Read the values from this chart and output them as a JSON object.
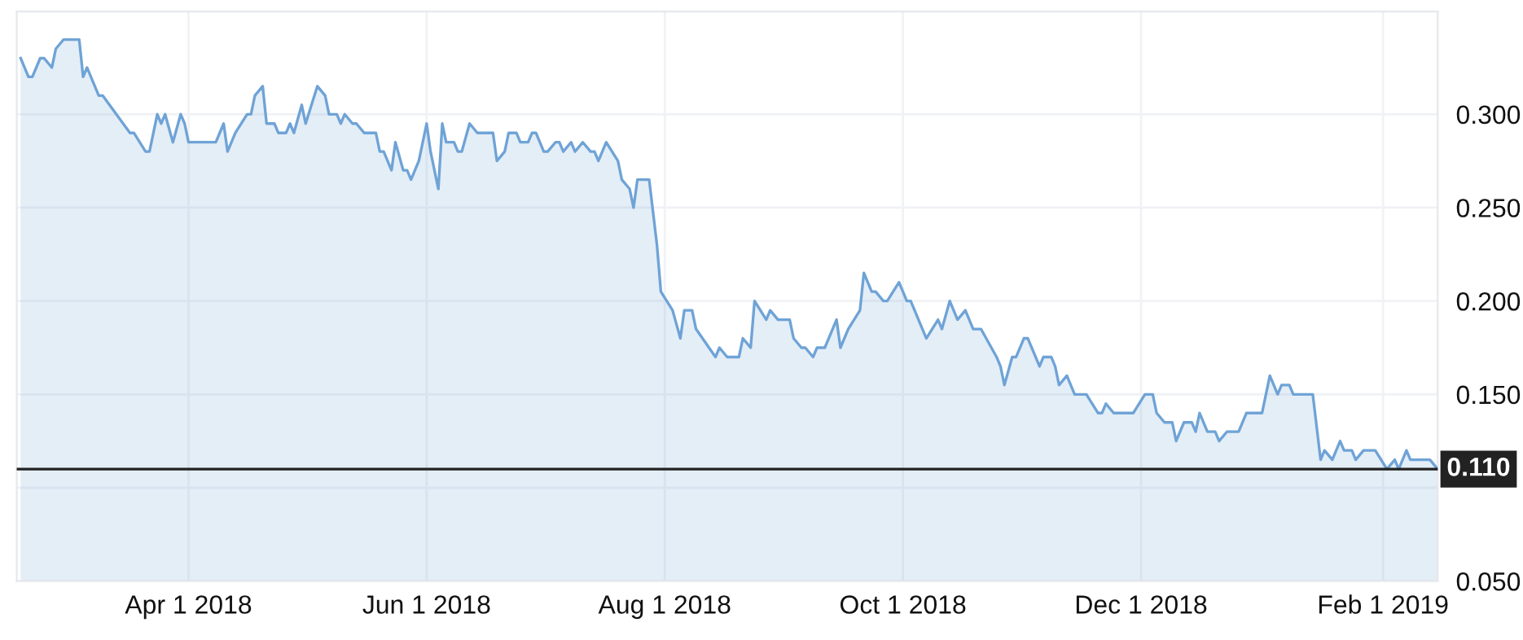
{
  "chart_data": {
    "type": "area",
    "x": [
      "2018-02-17",
      "2018-02-19",
      "2018-02-20",
      "2018-02-22",
      "2018-02-23",
      "2018-02-25",
      "2018-02-26",
      "2018-02-28",
      "2018-03-04",
      "2018-03-05",
      "2018-03-06",
      "2018-03-08",
      "2018-03-09",
      "2018-03-10",
      "2018-03-17",
      "2018-03-18",
      "2018-03-21",
      "2018-03-22",
      "2018-03-24",
      "2018-03-25",
      "2018-03-26",
      "2018-03-28",
      "2018-03-30",
      "2018-03-31",
      "2018-04-01",
      "2018-04-08",
      "2018-04-10",
      "2018-04-11",
      "2018-04-13",
      "2018-04-16",
      "2018-04-17",
      "2018-04-18",
      "2018-04-20",
      "2018-04-21",
      "2018-04-23",
      "2018-04-24",
      "2018-04-26",
      "2018-04-27",
      "2018-04-28",
      "2018-04-30",
      "2018-05-01",
      "2018-05-04",
      "2018-05-06",
      "2018-05-07",
      "2018-05-09",
      "2018-05-10",
      "2018-05-11",
      "2018-05-13",
      "2018-05-14",
      "2018-05-16",
      "2018-05-19",
      "2018-05-20",
      "2018-05-21",
      "2018-05-23",
      "2018-05-24",
      "2018-05-26",
      "2018-05-27",
      "2018-05-28",
      "2018-05-30",
      "2018-06-01",
      "2018-06-02",
      "2018-06-04",
      "2018-06-05",
      "2018-06-06",
      "2018-06-08",
      "2018-06-09",
      "2018-06-10",
      "2018-06-12",
      "2018-06-14",
      "2018-06-18",
      "2018-06-19",
      "2018-06-21",
      "2018-06-22",
      "2018-06-24",
      "2018-06-25",
      "2018-06-27",
      "2018-06-28",
      "2018-06-29",
      "2018-07-01",
      "2018-07-02",
      "2018-07-04",
      "2018-07-05",
      "2018-07-06",
      "2018-07-08",
      "2018-07-09",
      "2018-07-11",
      "2018-07-13",
      "2018-07-14",
      "2018-07-15",
      "2018-07-17",
      "2018-07-20",
      "2018-07-21",
      "2018-07-23",
      "2018-07-24",
      "2018-07-25",
      "2018-07-28",
      "2018-07-30",
      "2018-07-31",
      "2018-08-03",
      "2018-08-05",
      "2018-08-06",
      "2018-08-08",
      "2018-08-09",
      "2018-08-14",
      "2018-08-15",
      "2018-08-17",
      "2018-08-20",
      "2018-08-21",
      "2018-08-23",
      "2018-08-24",
      "2018-08-27",
      "2018-08-28",
      "2018-08-30",
      "2018-09-02",
      "2018-09-03",
      "2018-09-05",
      "2018-09-06",
      "2018-09-08",
      "2018-09-09",
      "2018-09-11",
      "2018-09-12",
      "2018-09-14",
      "2018-09-15",
      "2018-09-17",
      "2018-09-20",
      "2018-09-21",
      "2018-09-23",
      "2018-09-24",
      "2018-09-26",
      "2018-09-27",
      "2018-09-30",
      "2018-10-02",
      "2018-10-03",
      "2018-10-05",
      "2018-10-07",
      "2018-10-10",
      "2018-10-11",
      "2018-10-13",
      "2018-10-15",
      "2018-10-17",
      "2018-10-19",
      "2018-10-21",
      "2018-10-25",
      "2018-10-26",
      "2018-10-27",
      "2018-10-29",
      "2018-10-30",
      "2018-11-01",
      "2018-11-02",
      "2018-11-03",
      "2018-11-05",
      "2018-11-06",
      "2018-11-08",
      "2018-11-09",
      "2018-11-10",
      "2018-11-12",
      "2018-11-14",
      "2018-11-17",
      "2018-11-20",
      "2018-11-21",
      "2018-11-22",
      "2018-11-24",
      "2018-11-29",
      "2018-12-02",
      "2018-12-04",
      "2018-12-05",
      "2018-12-07",
      "2018-12-09",
      "2018-12-10",
      "2018-12-12",
      "2018-12-14",
      "2018-12-15",
      "2018-12-16",
      "2018-12-18",
      "2018-12-20",
      "2018-12-21",
      "2018-12-23",
      "2018-12-26",
      "2018-12-28",
      "2019-01-01",
      "2019-01-03",
      "2019-01-05",
      "2019-01-06",
      "2019-01-08",
      "2019-01-09",
      "2019-01-14",
      "2019-01-16",
      "2019-01-17",
      "2019-01-19",
      "2019-01-21",
      "2019-01-22",
      "2019-01-24",
      "2019-01-25",
      "2019-01-27",
      "2019-01-30",
      "2019-02-02",
      "2019-02-04",
      "2019-02-05",
      "2019-02-07",
      "2019-02-08",
      "2019-02-13",
      "2019-02-15"
    ],
    "series": [
      {
        "color": "#6fa3d6",
        "values": [
          0.33,
          0.32,
          0.32,
          0.33,
          0.33,
          0.325,
          0.335,
          0.34,
          0.34,
          0.32,
          0.325,
          0.315,
          0.31,
          0.31,
          0.29,
          0.29,
          0.28,
          0.28,
          0.3,
          0.295,
          0.3,
          0.285,
          0.3,
          0.295,
          0.285,
          0.285,
          0.295,
          0.28,
          0.29,
          0.3,
          0.3,
          0.31,
          0.315,
          0.295,
          0.295,
          0.29,
          0.29,
          0.295,
          0.29,
          0.305,
          0.295,
          0.315,
          0.31,
          0.3,
          0.3,
          0.295,
          0.3,
          0.295,
          0.295,
          0.29,
          0.29,
          0.28,
          0.28,
          0.27,
          0.285,
          0.27,
          0.27,
          0.265,
          0.275,
          0.295,
          0.28,
          0.26,
          0.295,
          0.285,
          0.285,
          0.28,
          0.28,
          0.295,
          0.29,
          0.29,
          0.275,
          0.28,
          0.29,
          0.29,
          0.285,
          0.285,
          0.29,
          0.29,
          0.28,
          0.28,
          0.285,
          0.285,
          0.28,
          0.285,
          0.28,
          0.285,
          0.28,
          0.28,
          0.275,
          0.285,
          0.275,
          0.265,
          0.26,
          0.25,
          0.265,
          0.265,
          0.23,
          0.205,
          0.195,
          0.18,
          0.195,
          0.195,
          0.185,
          0.17,
          0.175,
          0.17,
          0.17,
          0.18,
          0.175,
          0.2,
          0.19,
          0.195,
          0.19,
          0.19,
          0.18,
          0.175,
          0.175,
          0.17,
          0.175,
          0.175,
          0.18,
          0.19,
          0.175,
          0.185,
          0.195,
          0.215,
          0.205,
          0.205,
          0.2,
          0.2,
          0.21,
          0.2,
          0.2,
          0.19,
          0.18,
          0.19,
          0.185,
          0.2,
          0.19,
          0.195,
          0.185,
          0.185,
          0.17,
          0.165,
          0.155,
          0.17,
          0.17,
          0.18,
          0.18,
          0.175,
          0.165,
          0.17,
          0.17,
          0.165,
          0.155,
          0.16,
          0.15,
          0.15,
          0.14,
          0.14,
          0.145,
          0.14,
          0.14,
          0.15,
          0.15,
          0.14,
          0.135,
          0.135,
          0.125,
          0.135,
          0.135,
          0.13,
          0.14,
          0.13,
          0.13,
          0.125,
          0.13,
          0.13,
          0.14,
          0.14,
          0.16,
          0.15,
          0.155,
          0.155,
          0.15,
          0.15,
          0.115,
          0.12,
          0.115,
          0.125,
          0.12,
          0.12,
          0.115,
          0.12,
          0.12,
          0.11,
          0.115,
          0.11,
          0.12,
          0.115,
          0.115,
          0.11
        ]
      }
    ],
    "xlim": [
      "2018-02-16",
      "2019-02-15"
    ],
    "xticks": [
      {
        "value": "2018-04-01",
        "label": "Apr 1 2018"
      },
      {
        "value": "2018-06-01",
        "label": "Jun 1 2018"
      },
      {
        "value": "2018-08-01",
        "label": "Aug 1 2018"
      },
      {
        "value": "2018-10-01",
        "label": "Oct 1 2018"
      },
      {
        "value": "2018-12-01",
        "label": "Dec 1 2018"
      },
      {
        "value": "2019-02-01",
        "label": "Feb 1 2019"
      }
    ],
    "ylim": [
      0.05,
      0.355
    ],
    "yticks": [
      {
        "value": 0.05,
        "label": "0.050"
      },
      {
        "value": 0.1,
        "label": null
      },
      {
        "value": 0.15,
        "label": "0.150"
      },
      {
        "value": 0.2,
        "label": "0.200"
      },
      {
        "value": 0.25,
        "label": "0.250"
      },
      {
        "value": 0.3,
        "label": "0.300"
      }
    ],
    "ref_lines": [
      {
        "axis": "y",
        "value": 0.11,
        "label": "0.110",
        "color": "#222222"
      }
    ],
    "grid": true,
    "legend": false,
    "marker": "none",
    "line_style": "solid"
  }
}
